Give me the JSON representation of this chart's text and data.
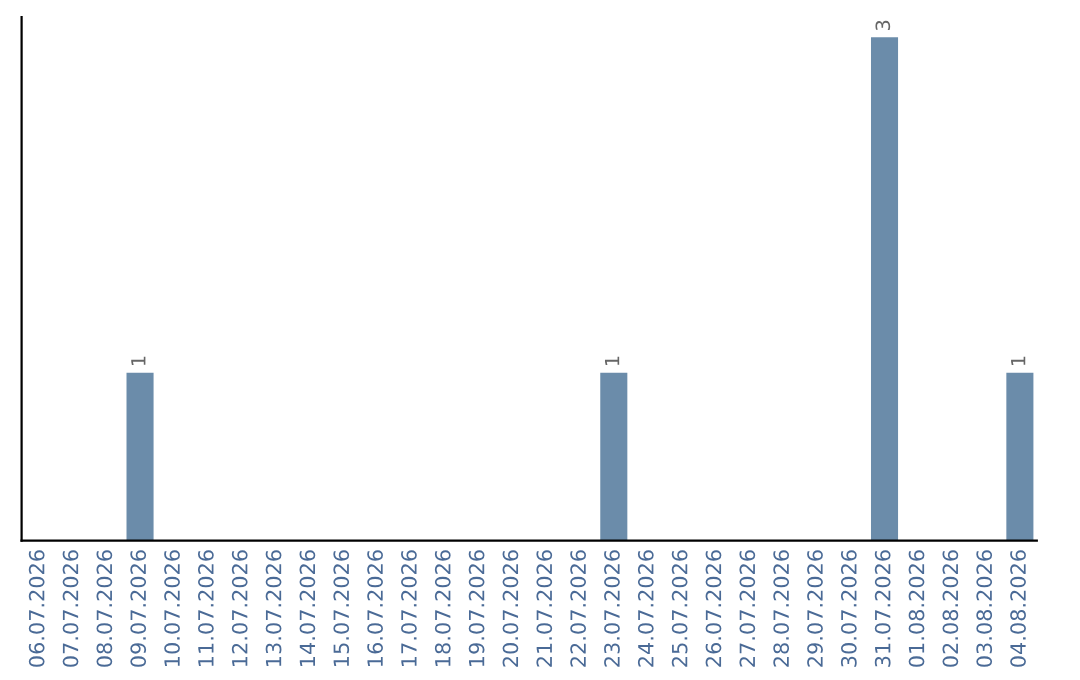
{
  "chart_data": {
    "type": "bar",
    "categories": [
      "06.07.2026",
      "07.07.2026",
      "08.07.2026",
      "09.07.2026",
      "10.07.2026",
      "11.07.2026",
      "12.07.2026",
      "13.07.2026",
      "14.07.2026",
      "15.07.2026",
      "16.07.2026",
      "17.07.2026",
      "18.07.2026",
      "19.07.2026",
      "20.07.2026",
      "21.07.2026",
      "22.07.2026",
      "23.07.2026",
      "24.07.2026",
      "25.07.2026",
      "26.07.2026",
      "27.07.2026",
      "28.07.2026",
      "29.07.2026",
      "30.07.2026",
      "31.07.2026",
      "01.08.2026",
      "02.08.2026",
      "03.08.2026",
      "04.08.2026"
    ],
    "values": [
      0,
      0,
      0,
      1,
      0,
      0,
      0,
      0,
      0,
      0,
      0,
      0,
      0,
      0,
      0,
      0,
      0,
      1,
      0,
      0,
      0,
      0,
      0,
      0,
      0,
      3,
      0,
      0,
      0,
      1
    ],
    "value_labels": [
      null,
      null,
      null,
      "1",
      null,
      null,
      null,
      null,
      null,
      null,
      null,
      null,
      null,
      null,
      null,
      null,
      null,
      "1",
      null,
      null,
      null,
      null,
      null,
      null,
      null,
      "3",
      null,
      null,
      null,
      "1"
    ],
    "color": "#6b8caa",
    "tick_labels": "x",
    "grid": false
  }
}
